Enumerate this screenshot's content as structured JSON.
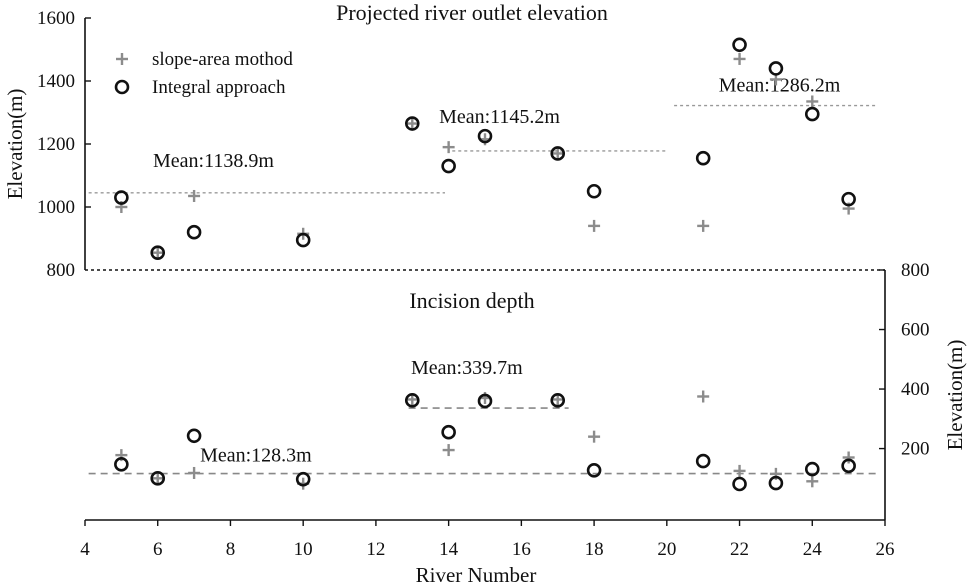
{
  "chart_data": [
    {
      "type": "scatter",
      "title": "Projected river outlet elevation",
      "xlabel": "River Number",
      "ylabel": "Elevation(m)",
      "xlim": [
        4,
        26
      ],
      "ylim": [
        800,
        1600
      ],
      "y_axis_side": "left",
      "y_ticks": [
        800,
        1000,
        1200,
        1400,
        1600
      ],
      "legend": {
        "position": "top-left",
        "entries": [
          "slope-area mothod",
          "Integral approach"
        ]
      },
      "series": [
        {
          "name": "slope-area mothod",
          "marker": "plus",
          "color": "#8c8c8c",
          "x": [
            5,
            6,
            7,
            10,
            13,
            14,
            15,
            17,
            18,
            21,
            22,
            23,
            24,
            25
          ],
          "y": [
            1000,
            855,
            1035,
            915,
            1265,
            1190,
            1215,
            1170,
            940,
            940,
            1470,
            1405,
            1335,
            995
          ]
        },
        {
          "name": "Integral approach",
          "marker": "circle",
          "color": "#111111",
          "x": [
            5,
            6,
            7,
            10,
            13,
            14,
            15,
            17,
            18,
            21,
            22,
            23,
            24,
            25
          ],
          "y": [
            1030,
            855,
            920,
            895,
            1265,
            1130,
            1225,
            1170,
            1050,
            1155,
            1515,
            1440,
            1295,
            1025
          ]
        }
      ],
      "mean_lines": [
        {
          "label": "Mean:1138.9m",
          "value": 1045,
          "x_range": [
            4.1,
            13.9
          ]
        },
        {
          "label": "Mean:1145.2m",
          "value": 1178,
          "x_range": [
            14.1,
            20
          ]
        },
        {
          "label": "Mean:1286.2m",
          "value": 1322,
          "x_range": [
            20.2,
            25.8
          ]
        }
      ],
      "baseline": {
        "value": 800
      }
    },
    {
      "type": "scatter",
      "title": "Incision depth",
      "xlabel": "River Number",
      "ylabel": "Elevation(m)",
      "xlim": [
        4,
        26
      ],
      "ylim": [
        -40,
        800
      ],
      "y_axis_side": "right",
      "y_ticks": [
        200,
        400,
        600,
        800
      ],
      "x_ticks": [
        4,
        6,
        8,
        10,
        12,
        14,
        16,
        18,
        20,
        22,
        24,
        26
      ],
      "series": [
        {
          "name": "slope-area mothod",
          "marker": "plus",
          "color": "#8c8c8c",
          "x": [
            5,
            6,
            7,
            10,
            13,
            14,
            15,
            17,
            18,
            21,
            22,
            23,
            24,
            25
          ],
          "y": [
            178,
            100,
            118,
            82,
            365,
            195,
            370,
            365,
            240,
            375,
            125,
            115,
            90,
            170
          ]
        },
        {
          "name": "Integral approach",
          "marker": "circle",
          "color": "#111111",
          "x": [
            5,
            6,
            7,
            10,
            13,
            14,
            15,
            17,
            18,
            21,
            22,
            23,
            24,
            25
          ],
          "y": [
            147,
            100,
            243,
            97,
            362,
            255,
            360,
            362,
            127,
            158,
            81,
            84,
            131,
            142
          ]
        }
      ],
      "mean_lines": [
        {
          "label": "Mean:128.3m",
          "value": 116,
          "x_range": [
            4.1,
            25.8
          ]
        },
        {
          "label": "Mean:339.7m",
          "value": 336,
          "x_range": [
            12.9,
            17.3
          ]
        }
      ]
    }
  ]
}
